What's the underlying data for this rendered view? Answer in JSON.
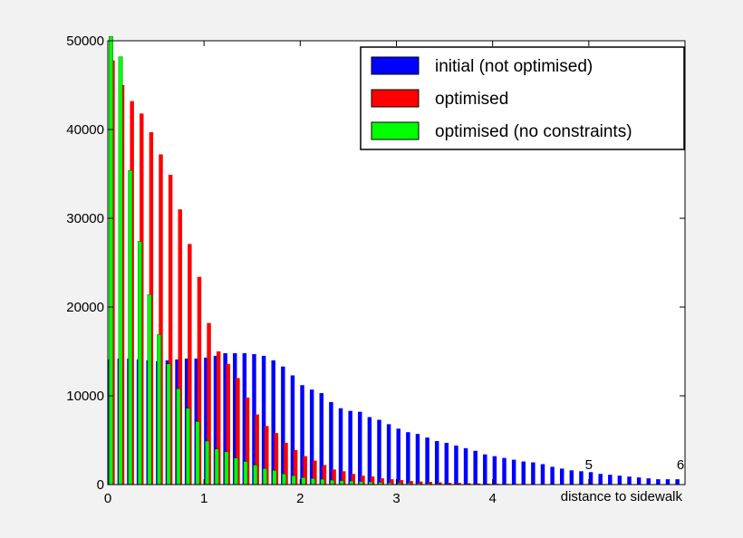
{
  "chart_data": {
    "type": "bar",
    "title": "",
    "xlabel": "distance to sidewalk",
    "ylabel": "",
    "xlim": [
      0,
      6
    ],
    "ylim": [
      0,
      50000
    ],
    "x_ticks": [
      "0",
      "1",
      "2",
      "3",
      "4",
      "5",
      "6"
    ],
    "y_ticks": [
      "0",
      "10000",
      "20000",
      "30000",
      "40000",
      "50000"
    ],
    "grid": false,
    "legend_position": "top-right",
    "bin_width": 0.1,
    "series": [
      {
        "name": "initial (not optimised)",
        "color": "#0000ff",
        "x": [
          0.0,
          0.1,
          0.2,
          0.3,
          0.4,
          0.5,
          0.6,
          0.7,
          0.8,
          0.9,
          1.0,
          1.1,
          1.2,
          1.3,
          1.4,
          1.5,
          1.6,
          1.7,
          1.8,
          1.9,
          2.0,
          2.1,
          2.2,
          2.3,
          2.4,
          2.5,
          2.6,
          2.7,
          2.8,
          2.9,
          3.0,
          3.1,
          3.2,
          3.3,
          3.4,
          3.5,
          3.6,
          3.7,
          3.8,
          3.9,
          4.0,
          4.1,
          4.2,
          4.3,
          4.4,
          4.5,
          4.6,
          4.7,
          4.8,
          4.9,
          5.0,
          5.1,
          5.2,
          5.3,
          5.4,
          5.5,
          5.6,
          5.7,
          5.8,
          5.9
        ],
        "values": [
          14100,
          14200,
          14200,
          14100,
          14000,
          13900,
          14000,
          14100,
          14200,
          14200,
          14300,
          14500,
          14800,
          14800,
          14800,
          14700,
          14500,
          14000,
          13300,
          12300,
          11200,
          10700,
          10300,
          9300,
          8600,
          8300,
          8200,
          7600,
          7300,
          6800,
          6300,
          5900,
          5700,
          5300,
          4900,
          4700,
          4400,
          4100,
          3800,
          3400,
          3200,
          3000,
          2800,
          2600,
          2500,
          2300,
          2000,
          1800,
          1600,
          1500,
          1400,
          1200,
          1100,
          1000,
          900,
          800,
          700,
          600,
          600,
          600
        ]
      },
      {
        "name": "optimised",
        "color": "#ff0000",
        "x": [
          0.0,
          0.1,
          0.2,
          0.3,
          0.4,
          0.5,
          0.6,
          0.7,
          0.8,
          0.9,
          1.0,
          1.1,
          1.2,
          1.3,
          1.4,
          1.5,
          1.6,
          1.7,
          1.8,
          1.9,
          2.0,
          2.1,
          2.2,
          2.3,
          2.4,
          2.5,
          2.6,
          2.7,
          2.8,
          2.9,
          3.0,
          3.1,
          3.2,
          3.3,
          3.4,
          3.5,
          3.6,
          3.7,
          3.8,
          3.9,
          4.0,
          4.1,
          4.2,
          4.3,
          4.4,
          4.5,
          4.6,
          4.7,
          4.8,
          4.9,
          5.0
        ],
        "values": [
          47800,
          45000,
          43200,
          41800,
          39700,
          37200,
          34900,
          31000,
          27100,
          23400,
          18200,
          15000,
          13600,
          12000,
          9800,
          7900,
          6600,
          5800,
          4700,
          3900,
          3200,
          2700,
          2200,
          1700,
          1500,
          1200,
          1000,
          900,
          700,
          600,
          500,
          400,
          350,
          300,
          250,
          200,
          180,
          150,
          120,
          100,
          90,
          80,
          70,
          60,
          50,
          40,
          30,
          30,
          20,
          20,
          10
        ]
      },
      {
        "name": "optimised (no constraints)",
        "color": "#00ff00",
        "x": [
          0.0,
          0.1,
          0.2,
          0.3,
          0.4,
          0.5,
          0.6,
          0.7,
          0.8,
          0.9,
          1.0,
          1.1,
          1.2,
          1.3,
          1.4,
          1.5,
          1.6,
          1.7,
          1.8,
          1.9,
          2.0,
          2.1,
          2.2,
          2.3,
          2.4,
          2.5,
          2.6,
          2.7,
          2.8,
          2.9,
          3.0,
          3.1,
          3.2,
          3.3,
          3.4,
          3.5,
          3.6,
          3.7,
          3.8,
          3.9,
          4.0,
          4.1,
          4.2,
          4.3,
          4.4,
          4.5,
          4.6,
          4.7,
          4.8,
          4.9,
          5.0
        ],
        "values": [
          50500,
          48200,
          35400,
          27400,
          21400,
          16900,
          13600,
          10800,
          8600,
          7100,
          4900,
          4000,
          3700,
          3000,
          2600,
          2200,
          1800,
          1600,
          1200,
          1000,
          800,
          700,
          600,
          500,
          450,
          400,
          350,
          300,
          250,
          200,
          180,
          160,
          140,
          120,
          100,
          90,
          80,
          70,
          60,
          50,
          40,
          35,
          30,
          25,
          20,
          15,
          10,
          10,
          10,
          5,
          5
        ]
      }
    ]
  }
}
